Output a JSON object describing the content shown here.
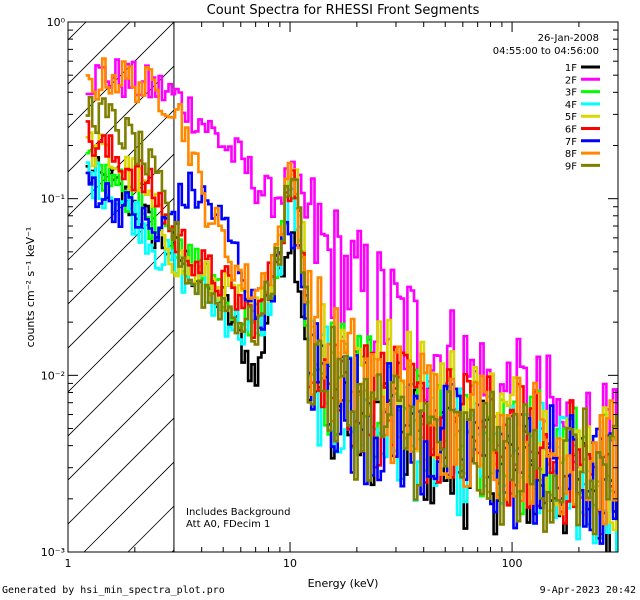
{
  "chart_data": {
    "type": "line",
    "title": "Count Spectra for RHESSI Front Segments",
    "xlabel": "Energy (keV)",
    "ylabel": "counts cm⁻² s⁻¹ keV⁻¹",
    "xscale": "log",
    "yscale": "log",
    "xlim": [
      1,
      300
    ],
    "ylim": [
      0.001,
      1
    ],
    "x_ticks": [
      {
        "value": 1,
        "label": "1"
      },
      {
        "value": 10,
        "label": "10"
      },
      {
        "value": 100,
        "label": "100"
      }
    ],
    "y_ticks": [
      {
        "value": 1,
        "label": "10⁰"
      },
      {
        "value": 0.1,
        "label": "10⁻¹"
      },
      {
        "value": 0.01,
        "label": "10⁻²"
      },
      {
        "value": 0.001,
        "label": "10⁻³"
      }
    ],
    "date": "26-Jan-2008",
    "time_range": "04:55:00 to 04:56:00",
    "hatched_region_max_keV": 3,
    "annotations": [
      "Includes Background",
      "Att A0, FDecim 1"
    ],
    "series": [
      {
        "name": "1F",
        "color": "#000000",
        "points": [
          [
            1.2,
            0.14
          ],
          [
            1.5,
            0.12
          ],
          [
            2,
            0.09
          ],
          [
            2.5,
            0.06
          ],
          [
            3,
            0.05
          ],
          [
            3.5,
            0.04
          ],
          [
            4,
            0.035
          ],
          [
            5,
            0.025
          ],
          [
            6,
            0.015
          ],
          [
            7,
            0.009
          ],
          [
            8,
            0.03
          ],
          [
            9,
            0.045
          ],
          [
            10,
            0.065
          ],
          [
            11,
            0.03
          ],
          [
            12,
            0.012
          ],
          [
            13,
            0.008
          ],
          [
            15,
            0.008
          ],
          [
            20,
            0.006
          ],
          [
            30,
            0.005
          ],
          [
            50,
            0.0035
          ],
          [
            70,
            0.003
          ],
          [
            100,
            0.003
          ],
          [
            150,
            0.0025
          ],
          [
            200,
            0.0025
          ],
          [
            300,
            0.002
          ]
        ]
      },
      {
        "name": "2F",
        "color": "#ff00ff",
        "points": [
          [
            1.2,
            0.48
          ],
          [
            1.5,
            0.5
          ],
          [
            2,
            0.45
          ],
          [
            2.5,
            0.42
          ],
          [
            3,
            0.38
          ],
          [
            3.5,
            0.32
          ],
          [
            4,
            0.27
          ],
          [
            5,
            0.2
          ],
          [
            6,
            0.16
          ],
          [
            7,
            0.12
          ],
          [
            8,
            0.1
          ],
          [
            9,
            0.11
          ],
          [
            10,
            0.13
          ],
          [
            11,
            0.1
          ],
          [
            12,
            0.07
          ],
          [
            15,
            0.045
          ],
          [
            20,
            0.03
          ],
          [
            30,
            0.02
          ],
          [
            40,
            0.015
          ],
          [
            50,
            0.012
          ],
          [
            70,
            0.009
          ],
          [
            100,
            0.007
          ],
          [
            150,
            0.0055
          ],
          [
            200,
            0.0045
          ],
          [
            300,
            0.0035
          ]
        ]
      },
      {
        "name": "3F",
        "color": "#00ff00",
        "points": [
          [
            1.2,
            0.16
          ],
          [
            1.5,
            0.13
          ],
          [
            2,
            0.1
          ],
          [
            2.5,
            0.065
          ],
          [
            3,
            0.055
          ],
          [
            3.5,
            0.045
          ],
          [
            4,
            0.04
          ],
          [
            5,
            0.03
          ],
          [
            6,
            0.022
          ],
          [
            7,
            0.02
          ],
          [
            8,
            0.03
          ],
          [
            9,
            0.06
          ],
          [
            10,
            0.13
          ],
          [
            11,
            0.06
          ],
          [
            12,
            0.015
          ],
          [
            15,
            0.01
          ],
          [
            20,
            0.008
          ],
          [
            30,
            0.006
          ],
          [
            50,
            0.005
          ],
          [
            70,
            0.004
          ],
          [
            100,
            0.004
          ],
          [
            150,
            0.0035
          ],
          [
            200,
            0.003
          ],
          [
            300,
            0.0025
          ]
        ]
      },
      {
        "name": "4F",
        "color": "#00ffff",
        "points": [
          [
            1.2,
            0.14
          ],
          [
            1.5,
            0.11
          ],
          [
            2,
            0.08
          ],
          [
            2.5,
            0.05
          ],
          [
            3,
            0.04
          ],
          [
            3.5,
            0.035
          ],
          [
            4,
            0.03
          ],
          [
            5,
            0.022
          ],
          [
            6,
            0.018
          ],
          [
            7,
            0.016
          ],
          [
            8,
            0.028
          ],
          [
            9,
            0.05
          ],
          [
            10,
            0.12
          ],
          [
            11,
            0.05
          ],
          [
            12,
            0.012
          ],
          [
            15,
            0.007
          ],
          [
            20,
            0.006
          ],
          [
            30,
            0.005
          ],
          [
            50,
            0.004
          ],
          [
            70,
            0.0035
          ],
          [
            100,
            0.003
          ],
          [
            150,
            0.003
          ],
          [
            200,
            0.0025
          ],
          [
            300,
            0.002
          ]
        ]
      },
      {
        "name": "5F",
        "color": "#d8d800",
        "points": [
          [
            1.2,
            0.2
          ],
          [
            1.5,
            0.17
          ],
          [
            2,
            0.13
          ],
          [
            2.5,
            0.08
          ],
          [
            3,
            0.045
          ],
          [
            3.5,
            0.04
          ],
          [
            4,
            0.035
          ],
          [
            5,
            0.03
          ],
          [
            6,
            0.025
          ],
          [
            7,
            0.022
          ],
          [
            8,
            0.035
          ],
          [
            9,
            0.07
          ],
          [
            10,
            0.19
          ],
          [
            11,
            0.08
          ],
          [
            12,
            0.025
          ],
          [
            15,
            0.014
          ],
          [
            20,
            0.012
          ],
          [
            30,
            0.009
          ],
          [
            50,
            0.007
          ],
          [
            70,
            0.006
          ],
          [
            100,
            0.005
          ],
          [
            150,
            0.004
          ],
          [
            200,
            0.0035
          ],
          [
            300,
            0.003
          ]
        ]
      },
      {
        "name": "6F",
        "color": "#ff0000",
        "points": [
          [
            1.2,
            0.22
          ],
          [
            1.5,
            0.18
          ],
          [
            2,
            0.14
          ],
          [
            2.5,
            0.1
          ],
          [
            3,
            0.06
          ],
          [
            3.5,
            0.05
          ],
          [
            4,
            0.04
          ],
          [
            5,
            0.033
          ],
          [
            6,
            0.025
          ],
          [
            7,
            0.02
          ],
          [
            8,
            0.035
          ],
          [
            9,
            0.065
          ],
          [
            10,
            0.14
          ],
          [
            11,
            0.06
          ],
          [
            12,
            0.02
          ],
          [
            15,
            0.01
          ],
          [
            20,
            0.008
          ],
          [
            30,
            0.006
          ],
          [
            50,
            0.005
          ],
          [
            70,
            0.0045
          ],
          [
            100,
            0.004
          ],
          [
            150,
            0.0035
          ],
          [
            200,
            0.003
          ],
          [
            300,
            0.0025
          ]
        ]
      },
      {
        "name": "7F",
        "color": "#0000ff",
        "points": [
          [
            1.2,
            0.13
          ],
          [
            1.5,
            0.1
          ],
          [
            2,
            0.08
          ],
          [
            2.5,
            0.06
          ],
          [
            3,
            0.09
          ],
          [
            3.5,
            0.11
          ],
          [
            4,
            0.1
          ],
          [
            5,
            0.07
          ],
          [
            6,
            0.04
          ],
          [
            7,
            0.02
          ],
          [
            8,
            0.03
          ],
          [
            9,
            0.05
          ],
          [
            10,
            0.07
          ],
          [
            11,
            0.04
          ],
          [
            12,
            0.012
          ],
          [
            15,
            0.008
          ],
          [
            20,
            0.006
          ],
          [
            30,
            0.005
          ],
          [
            50,
            0.004
          ],
          [
            70,
            0.0035
          ],
          [
            100,
            0.003
          ],
          [
            150,
            0.003
          ],
          [
            200,
            0.0025
          ],
          [
            300,
            0.0022
          ]
        ]
      },
      {
        "name": "8F",
        "color": "#ff8800",
        "points": [
          [
            1.2,
            0.42
          ],
          [
            1.5,
            0.5
          ],
          [
            2,
            0.46
          ],
          [
            2.5,
            0.4
          ],
          [
            3,
            0.35
          ],
          [
            3.5,
            0.2
          ],
          [
            4,
            0.1
          ],
          [
            5,
            0.055
          ],
          [
            6,
            0.035
          ],
          [
            7,
            0.03
          ],
          [
            8,
            0.04
          ],
          [
            9,
            0.07
          ],
          [
            10,
            0.16
          ],
          [
            11,
            0.06
          ],
          [
            12,
            0.02
          ],
          [
            15,
            0.012
          ],
          [
            20,
            0.009
          ],
          [
            30,
            0.007
          ],
          [
            50,
            0.006
          ],
          [
            70,
            0.005
          ],
          [
            100,
            0.0045
          ],
          [
            150,
            0.004
          ],
          [
            200,
            0.0035
          ],
          [
            300,
            0.003
          ]
        ]
      },
      {
        "name": "9F",
        "color": "#808000",
        "points": [
          [
            1.2,
            0.33
          ],
          [
            1.5,
            0.28
          ],
          [
            2,
            0.2
          ],
          [
            2.5,
            0.12
          ],
          [
            3,
            0.06
          ],
          [
            3.5,
            0.035
          ],
          [
            4,
            0.03
          ],
          [
            5,
            0.025
          ],
          [
            6,
            0.02
          ],
          [
            7,
            0.018
          ],
          [
            8,
            0.03
          ],
          [
            9,
            0.06
          ],
          [
            10,
            0.15
          ],
          [
            11,
            0.07
          ],
          [
            12,
            0.015
          ],
          [
            15,
            0.008
          ],
          [
            20,
            0.006
          ],
          [
            30,
            0.005
          ],
          [
            50,
            0.004
          ],
          [
            70,
            0.0035
          ],
          [
            100,
            0.0032
          ],
          [
            150,
            0.003
          ],
          [
            200,
            0.0028
          ],
          [
            300,
            0.0025
          ]
        ]
      }
    ]
  },
  "footer": {
    "generated_by": "Generated by hsi_min_spectra_plot.pro",
    "timestamp": "9-Apr-2023 20:42"
  }
}
